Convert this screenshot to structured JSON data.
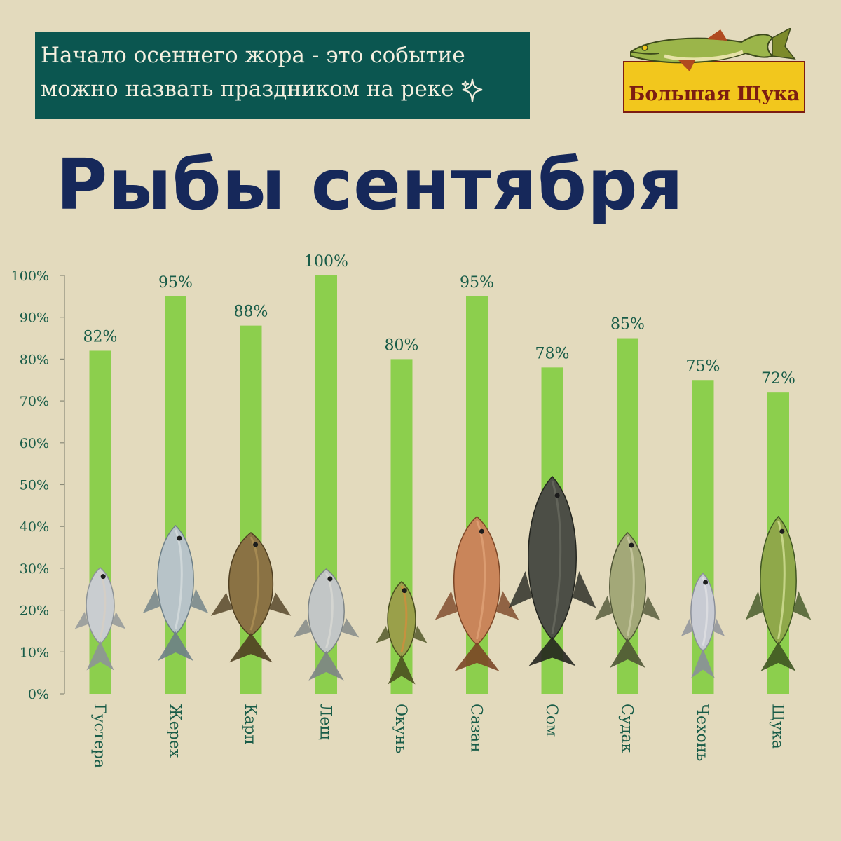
{
  "banner": {
    "line1": "Начало осеннего жора - это событие",
    "line2": "можно назвать праздником на реке"
  },
  "logo": {
    "text": "Большая Щука",
    "icon": "pike-icon"
  },
  "title": "Рыбы сентября",
  "colors": {
    "background": "#e3dabd",
    "banner": "#0b5650",
    "title": "#16285a",
    "bar": "#8ccf4d",
    "tick_text": "#195c48",
    "logo_yellow": "#f2c71d",
    "logo_red": "#7c1d12"
  },
  "chart_data": {
    "type": "bar",
    "categories": [
      "Густера",
      "Жерех",
      "Карп",
      "Лещ",
      "Окунь",
      "Сазан",
      "Сом",
      "Судак",
      "Чехонь",
      "Щука"
    ],
    "values": [
      82,
      95,
      88,
      100,
      80,
      95,
      78,
      85,
      75,
      72
    ],
    "data_labels": [
      "82%",
      "95%",
      "88%",
      "100%",
      "80%",
      "95%",
      "78%",
      "85%",
      "75%",
      "72%"
    ],
    "ylim": [
      0,
      100
    ],
    "yticks": [
      "0%",
      "10%",
      "20%",
      "30%",
      "40%",
      "50%",
      "60%",
      "70%",
      "80%",
      "90%",
      "100%"
    ],
    "grid": false,
    "legend": "none",
    "title": "Рыбы сентября",
    "xlabel": "",
    "ylabel": ""
  }
}
